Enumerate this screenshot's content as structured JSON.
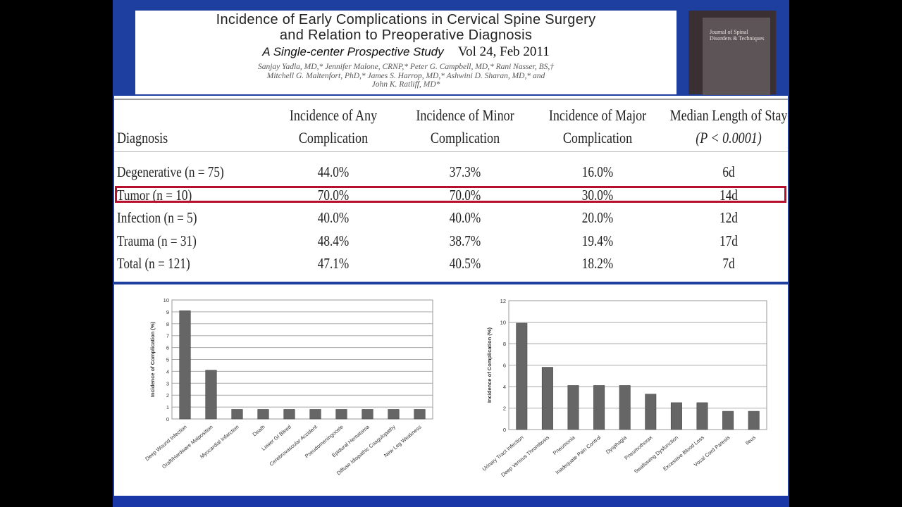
{
  "header": {
    "title_line1": "Incidence of Early Complications in Cervical Spine Surgery",
    "title_line2": "and Relation to Preoperative Diagnosis",
    "subtitle": "A Single-center Prospective Study",
    "volume": "Vol 24, Feb 2011",
    "authors_line1": "Sanjay Yadla, MD,* Jennifer Malone, CRNP,* Peter G. Campbell, MD,* Rani Nasser, BS,†",
    "authors_line2": "Mitchell G. Maltenfort, PhD,* James S. Harrop, MD,* Ashwini D. Sharan, MD,* and",
    "authors_line3": "John K. Ratliff, MD*"
  },
  "journal_cover": {
    "title": "Journal of Spinal Disorders & Techniques"
  },
  "table": {
    "headers": {
      "diagnosis": "Diagnosis",
      "any_l1": "Incidence of Any",
      "any_l2": "Complication",
      "minor_l1": "Incidence of Minor",
      "minor_l2": "Complication",
      "major_l1": "Incidence of Major",
      "major_l2": "Complication",
      "stay_l1": "Median Length of Stay",
      "stay_l2": "(P < 0.0001)"
    },
    "rows": [
      {
        "diagnosis": "Degenerative (n = 75)",
        "any": "44.0%",
        "minor": "37.3%",
        "major": "16.0%",
        "stay": "6d"
      },
      {
        "diagnosis": "Tumor (n = 10)",
        "any": "70.0%",
        "minor": "70.0%",
        "major": "30.0%",
        "stay": "14d"
      },
      {
        "diagnosis": "Infection (n = 5)",
        "any": "40.0%",
        "minor": "40.0%",
        "major": "20.0%",
        "stay": "12d"
      },
      {
        "diagnosis": "Trauma (n = 31)",
        "any": "48.4%",
        "minor": "38.7%",
        "major": "19.4%",
        "stay": "17d"
      },
      {
        "diagnosis": "Total (n = 121)",
        "any": "47.1%",
        "minor": "40.5%",
        "major": "18.2%",
        "stay": "7d"
      }
    ],
    "highlight_color": "#b80f2e"
  },
  "chart_data": [
    {
      "type": "bar",
      "ylabel": "Incidence of Complication (%)",
      "ylim": [
        0,
        10
      ],
      "yticks": [
        0,
        1,
        2,
        3,
        4,
        5,
        6,
        7,
        8,
        9,
        10
      ],
      "grid": true,
      "categories": [
        "Deep Wound Infection",
        "Graft/Hardware Malposition",
        "Myocardial Infarction",
        "Death",
        "Lower GI Bleed",
        "Cerebrovascular Accident",
        "Pseudomeningocele",
        "Epidural Hematoma",
        "Diffuse Idiopathic Coagulopathy",
        "New Leg Weakness"
      ],
      "values": [
        9.1,
        4.1,
        0.8,
        0.8,
        0.8,
        0.8,
        0.8,
        0.8,
        0.8,
        0.8
      ],
      "bar_color": "#666666"
    },
    {
      "type": "bar",
      "ylabel": "Incidence of Complication (%)",
      "ylim": [
        0,
        12
      ],
      "yticks": [
        0,
        2,
        4,
        6,
        8,
        10,
        12
      ],
      "grid": true,
      "categories": [
        "Urinary Tract Infection",
        "Deep Venous Thrombosis",
        "Pneumonia",
        "Inadequate Pain Control",
        "Dysphagia",
        "Pneumothorax",
        "Swallowing Dysfunction",
        "Excessive Blood Loss",
        "Vocal Cord Paresis",
        "Ileus"
      ],
      "values": [
        9.9,
        5.8,
        4.1,
        4.1,
        4.1,
        3.3,
        2.5,
        2.5,
        1.7,
        1.7
      ],
      "bar_color": "#666666"
    }
  ]
}
